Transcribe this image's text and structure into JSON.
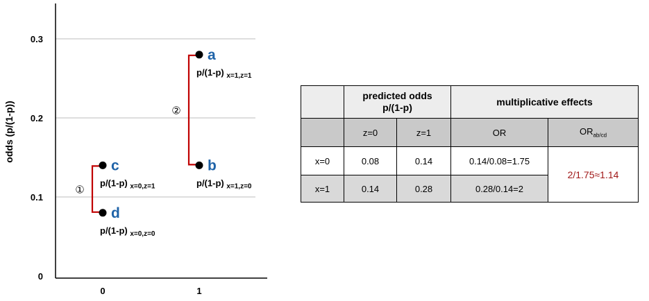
{
  "chart_data": {
    "type": "scatter",
    "title": "",
    "ylabel": "odds (p/(1-p))",
    "xlabel": "",
    "ylim": [
      0,
      0.3
    ],
    "xticks": [
      "0",
      "1"
    ],
    "yticks": [
      "0",
      "0.1",
      "0.2",
      "0.3"
    ],
    "grid": true,
    "points": [
      {
        "id": "a",
        "x": 1,
        "y": 0.28,
        "label": "p/(1-p)",
        "sub": "x=1,z=1",
        "color": "#1f63a8"
      },
      {
        "id": "b",
        "x": 1,
        "y": 0.14,
        "label": "p/(1-p)",
        "sub": "x=1,z=0",
        "color": "#1f63a8"
      },
      {
        "id": "c",
        "x": 0,
        "y": 0.14,
        "label": "p/(1-p)",
        "sub": "x=0,z=1",
        "color": "#1f63a8"
      },
      {
        "id": "d",
        "x": 0,
        "y": 0.08,
        "label": "p/(1-p)",
        "sub": "x=0,z=0",
        "color": "#1f63a8"
      }
    ],
    "brackets": [
      {
        "id": "bracket-1",
        "x": 0,
        "from": 0.08,
        "to": 0.14,
        "label": "①",
        "color": "#c00000"
      },
      {
        "id": "bracket-2",
        "x": 1,
        "from": 0.14,
        "to": 0.28,
        "label": "②",
        "color": "#c00000"
      }
    ]
  },
  "table": {
    "h_predicted": "predicted odds",
    "h_predicted2": "p/(1-p)",
    "h_mult": "multiplicative effects",
    "z0": "z=0",
    "z1": "z=1",
    "or": "OR",
    "orab": "OR",
    "orab_sub": "ab/cd",
    "rows": [
      {
        "label": "x=0",
        "z0": "0.08",
        "z1": "0.14",
        "or": "0.14/0.08=1.75"
      },
      {
        "label": "x=1",
        "z0": "0.14",
        "z1": "0.28",
        "or": "0.28/0.14=2"
      }
    ],
    "result": "2/1.75≈1.14",
    "result_color": "#a01818"
  }
}
